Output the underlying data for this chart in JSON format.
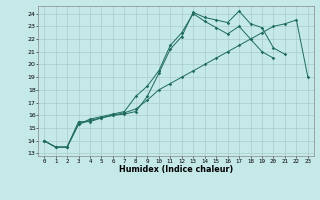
{
  "xlabel": "Humidex (Indice chaleur)",
  "bg_color": "#c5e8e8",
  "line_color": "#1e6b5e",
  "grid_color": "#aacccc",
  "xlim": [
    -0.5,
    23.5
  ],
  "ylim": [
    12.8,
    24.6
  ],
  "yticks": [
    13,
    14,
    15,
    16,
    17,
    18,
    19,
    20,
    21,
    22,
    23,
    24
  ],
  "xticks": [
    0,
    1,
    2,
    3,
    4,
    5,
    6,
    7,
    8,
    9,
    10,
    11,
    12,
    13,
    14,
    15,
    16,
    17,
    18,
    19,
    20,
    21,
    22,
    23
  ],
  "line1_x": [
    0,
    1,
    2,
    3,
    4,
    5,
    6,
    7,
    8,
    9,
    10,
    11,
    12,
    13,
    14,
    15,
    16,
    17,
    18,
    19,
    20,
    21
  ],
  "line1_y": [
    14.0,
    13.5,
    13.5,
    15.5,
    15.5,
    15.8,
    16.0,
    16.1,
    16.3,
    17.5,
    19.3,
    21.2,
    22.2,
    24.1,
    23.7,
    23.5,
    23.3,
    24.2,
    23.2,
    22.9,
    21.3,
    20.8
  ],
  "line2_x": [
    0,
    1,
    2,
    3,
    4,
    5,
    6,
    7,
    8,
    9,
    10,
    11,
    12,
    13,
    14,
    15,
    16,
    17,
    18,
    19,
    20,
    21,
    22,
    23
  ],
  "line2_y": [
    14.0,
    13.5,
    13.5,
    15.3,
    15.6,
    15.8,
    16.0,
    16.2,
    16.5,
    17.2,
    18.0,
    18.5,
    19.0,
    19.5,
    20.0,
    20.5,
    21.0,
    21.5,
    22.0,
    22.5,
    23.0,
    23.2,
    23.5,
    19.0
  ],
  "line3_x": [
    0,
    1,
    2,
    3,
    4,
    5,
    6,
    7,
    8,
    9,
    10,
    11,
    12,
    13,
    14,
    15,
    16,
    17,
    18,
    19,
    20
  ],
  "line3_y": [
    14.0,
    13.5,
    13.5,
    15.3,
    15.7,
    15.9,
    16.1,
    16.3,
    17.5,
    18.3,
    19.5,
    21.5,
    22.5,
    24.0,
    23.4,
    22.9,
    22.4,
    23.0,
    22.0,
    21.0,
    20.5
  ]
}
